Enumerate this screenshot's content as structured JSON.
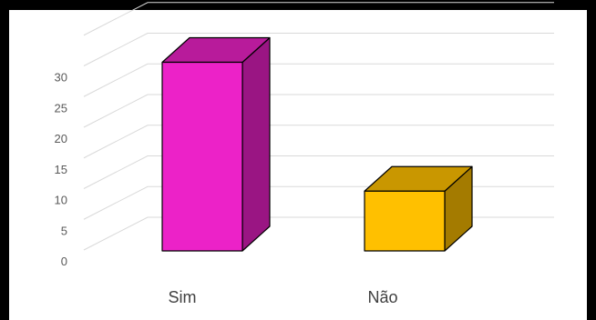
{
  "chart_data": {
    "type": "bar",
    "style": "3d-column",
    "categories": [
      "Sim",
      "Não"
    ],
    "values": [
      30,
      9
    ],
    "colors": [
      "#ec22c8",
      "#ffc000"
    ],
    "side_colors": [
      "#9a1583",
      "#a47b00"
    ],
    "top_colors": [
      "#b81b9b",
      "#c99700"
    ],
    "yticks": [
      "0",
      "5",
      "10",
      "15",
      "20",
      "25",
      "30"
    ],
    "ylim": [
      0,
      35
    ],
    "grid": true,
    "legend": "none"
  }
}
